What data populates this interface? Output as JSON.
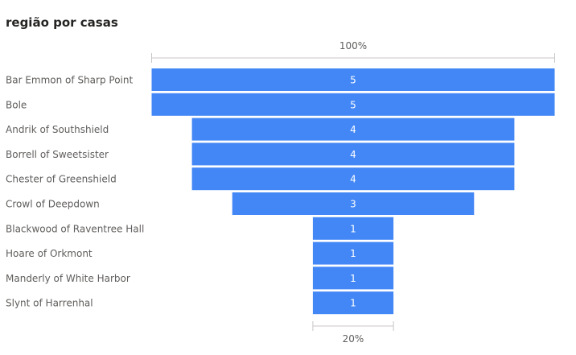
{
  "title": "região por casas",
  "chart_data": {
    "type": "funnel",
    "title": "região por casas",
    "categories": [
      "Bar Emmon of Sharp Point",
      "Bole",
      "Andrik of Southshield",
      "Borrell of Sweetsister",
      "Chester of Greenshield",
      "Crowl of Deepdown",
      "Blackwood of Raventree Hall",
      "Hoare of Orkmont",
      "Manderly of White Harbor",
      "Slynt of Harrenhal"
    ],
    "values": [
      5,
      5,
      4,
      4,
      4,
      3,
      1,
      1,
      1,
      1
    ],
    "top_percent_label": "100%",
    "bottom_percent_label": "20%",
    "bar_color": "#4287f5"
  }
}
